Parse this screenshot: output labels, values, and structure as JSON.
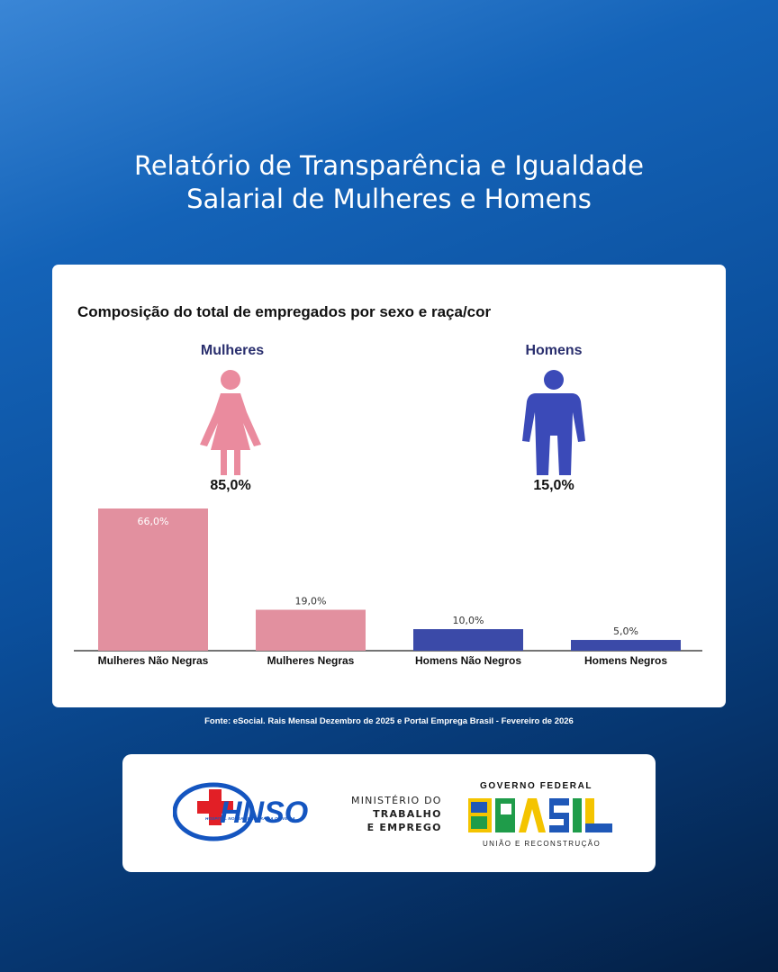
{
  "page": {
    "title_line1": "Relatório de Transparência e Igualdade",
    "title_line2": "Salarial de Mulheres e Homens",
    "source": "Fonte: eSocial. Rais Mensal Dezembro de 2025 e Portal Emprega Brasil - Fevereiro de 2026"
  },
  "chart_data": {
    "type": "bar",
    "title": "Composição do total de empregados por sexo e raça/cor",
    "categories": [
      "Mulheres Não Negras",
      "Mulheres Negras",
      "Homens Não Negros",
      "Homens Negros"
    ],
    "values": [
      66.0,
      19.0,
      10.0,
      5.0
    ],
    "value_labels": [
      "66,0%",
      "19,0%",
      "10,0%",
      "5,0%"
    ],
    "bar_colors": [
      "#e2909f",
      "#e2909f",
      "#3b4aa8",
      "#3b4aa8"
    ],
    "ylim": [
      0,
      66
    ],
    "grid": false,
    "groups": [
      {
        "label": "Mulheres",
        "percent": "85,0%",
        "icon": "woman-icon",
        "color": "#ea8b9e"
      },
      {
        "label": "Homens",
        "percent": "15,0%",
        "icon": "man-icon",
        "color": "#3b4ab8"
      }
    ]
  },
  "logos": {
    "hnso": {
      "name": "HNSO",
      "subtitle": "HOSPITAL NOSSA SENHORA DA OLIVEIRA"
    },
    "ministry": {
      "line1": "MINISTÉRIO DO",
      "line2": "TRABALHO",
      "line3": "E EMPREGO"
    },
    "government": {
      "top": "GOVERNO FEDERAL",
      "word": "BRASIL",
      "bottom": "UNIÃO E RECONSTRUÇÃO"
    }
  }
}
